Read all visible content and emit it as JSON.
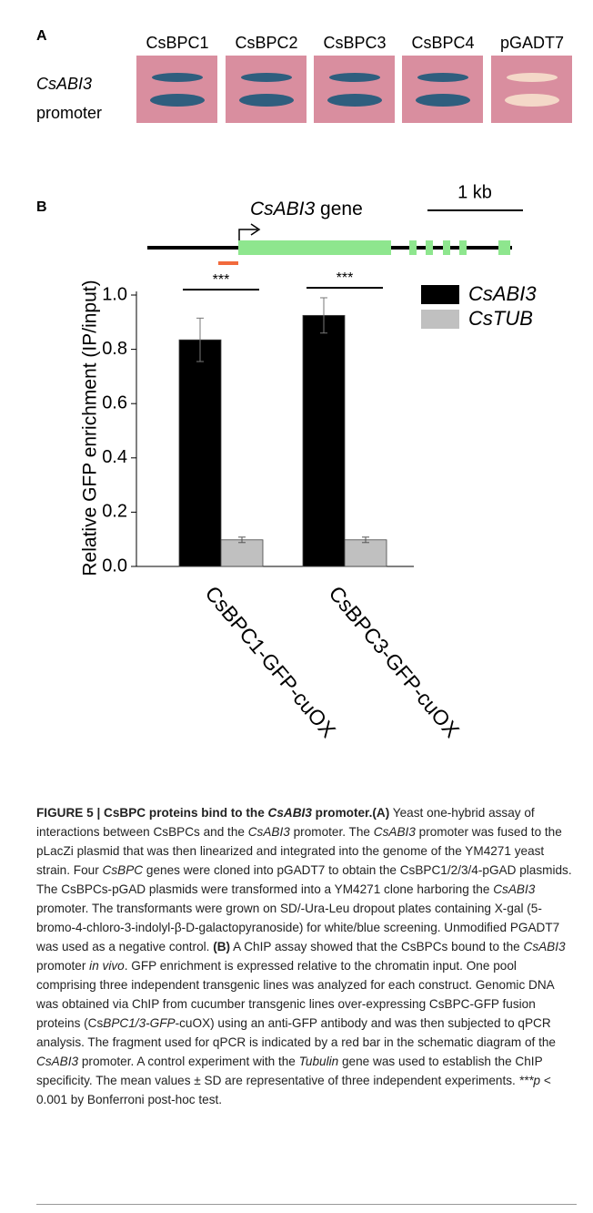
{
  "panel_a": {
    "label": "A",
    "columns": [
      "CsBPC1",
      "CsBPC2",
      "CsBPC3",
      "CsBPC4",
      "pGADT7"
    ],
    "row_label_gene": "CsABI3",
    "row_label_word": "promoter"
  },
  "panel_b": {
    "label": "B",
    "gene": "CsABI3",
    "gene_word": "gene",
    "scale_bar": "1 kb"
  },
  "chart_data": {
    "type": "bar",
    "ylabel": "Relative GFP enrichment (IP/input)",
    "categories": [
      "CsBPC1-GFP-cuOX",
      "CsBPC3-GFP-cuOX"
    ],
    "series": [
      {
        "name": "CsABI3",
        "color": "#000000",
        "values": [
          0.835,
          0.925
        ],
        "errors": [
          0.08,
          0.065
        ]
      },
      {
        "name": "CsTUB",
        "color": "#c0c0c0",
        "values": [
          0.098,
          0.098
        ],
        "errors": [
          0.01,
          0.01
        ]
      }
    ],
    "annotations": [
      "***",
      "***"
    ],
    "ylim": [
      0,
      1.0
    ],
    "yticks": [
      {
        "value": 0,
        "label": "0.0"
      },
      0.2,
      0.4,
      0.6,
      0.8,
      {
        "value": 1.0,
        "label": "1.0"
      }
    ]
  },
  "caption": {
    "runs": [
      "FIGURE 5 | CsBPC proteins bind to the ",
      "CsABI3",
      " promoter.",
      "(A)",
      " Yeast one-hybrid assay of interactions between CsBPCs and the ",
      "CsABI3",
      " promoter. The ",
      "CsABI3",
      " promoter was fused to the pLacZi plasmid that was then linearized and integrated into the genome of the YM4271 yeast strain. Four ",
      "CsBPC",
      " genes were cloned into pGADT7 to obtain the CsBPC1/2/3/4-pGAD plasmids. The CsBPCs-pGAD plasmids were transformed into a YM4271 clone harboring the ",
      "CsABI3",
      " promoter. The transformants were grown on SD/-Ura-Leu dropout plates containing X-gal (5-bromo-4-chloro-3-indolyl-β-D-galactopyranoside) for white/blue screening. Unmodified PGADT7 was used as a negative control. ",
      "(B)",
      " A ChIP assay showed that the CsBPCs bound to the ",
      "CsABI3",
      " promoter ",
      "in vivo",
      ". GFP enrichment is expressed relative to the chromatin input. One pool comprising three independent transgenic lines was analyzed for each construct. Genomic DNA was obtained via ChIP from cucumber transgenic lines over-expressing CsBPC-GFP fusion proteins (Cs",
      "BPC1/3-GFP",
      "-cuOX) using an anti-GFP antibody and was then subjected to qPCR analysis. The fragment used for qPCR is indicated by a red bar in the schematic diagram of the ",
      "CsABI3",
      " promoter. A control experiment with the ",
      "Tubulin",
      " gene was used to establish the ChIP specificity. The mean values ± SD are representative of three independent experiments. ",
      "***p",
      " < 0.001 by Bonferroni ",
      "post-hoc",
      " test."
    ]
  }
}
